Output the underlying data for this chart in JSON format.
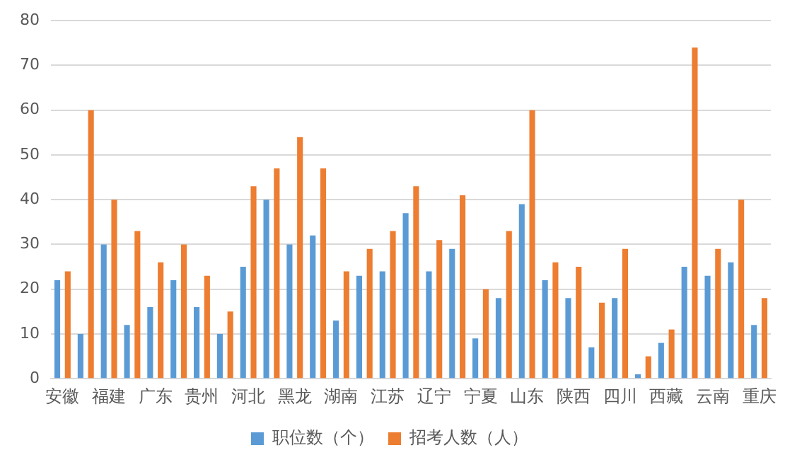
{
  "chart_data": {
    "type": "bar",
    "categories": [
      "安徽",
      null,
      "福建",
      null,
      "广东",
      null,
      "贵州",
      null,
      "河北",
      null,
      "黑龙",
      null,
      "湖南",
      null,
      "江苏",
      null,
      "辽宁",
      null,
      "宁夏",
      null,
      "山东",
      null,
      "陕西",
      null,
      "四川",
      null,
      "西藏",
      null,
      "云南",
      null,
      "重庆"
    ],
    "series": [
      {
        "name": "职位数（个）",
        "color": "#5b9bd5",
        "values": [
          22,
          10,
          30,
          12,
          16,
          22,
          16,
          10,
          25,
          40,
          30,
          32,
          13,
          23,
          24,
          37,
          24,
          29,
          9,
          18,
          39,
          22,
          18,
          7,
          18,
          1,
          8,
          25,
          23,
          26,
          12
        ]
      },
      {
        "name": "招考人数（人）",
        "color": "#ed7d31",
        "values": [
          24,
          60,
          40,
          33,
          26,
          30,
          23,
          15,
          43,
          47,
          54,
          47,
          24,
          29,
          33,
          43,
          31,
          41,
          20,
          33,
          60,
          26,
          25,
          17,
          29,
          5,
          11,
          74,
          29,
          40,
          18
        ]
      }
    ],
    "ylim": [
      0,
      80
    ],
    "yticks": [
      0,
      10,
      20,
      30,
      40,
      50,
      60,
      70,
      80
    ],
    "grid": "y",
    "legend": "bottom"
  }
}
